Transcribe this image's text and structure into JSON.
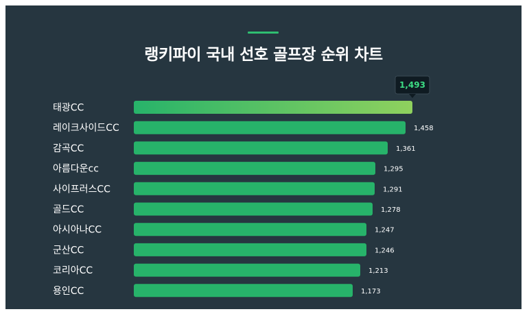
{
  "title": "랭키파이 국내 선호 골프장 순위 차트",
  "colors": {
    "background": "#263640",
    "bar": "#27b36a",
    "top_bar_start": "#27b36a",
    "top_bar_end": "#8fd15e",
    "accent": "#2fbf71",
    "tooltip_text": "#3ddc84"
  },
  "chart_data": {
    "type": "bar",
    "orientation": "horizontal",
    "categories": [
      "태광CC",
      "레이크사이드CC",
      "감곡CC",
      "아름다운cc",
      "사이프러스CC",
      "골드CC",
      "아시아나CC",
      "군산CC",
      "코리아CC",
      "용인CC"
    ],
    "values": [
      1493,
      1458,
      1361,
      1295,
      1291,
      1278,
      1247,
      1246,
      1213,
      1173
    ],
    "value_labels": [
      "1,493",
      "1,458",
      "1,361",
      "1,295",
      "1,291",
      "1,278",
      "1,247",
      "1,246",
      "1,213",
      "1,173"
    ],
    "highlight_index": 0,
    "grid": false,
    "xlim": [
      0,
      1493
    ]
  }
}
